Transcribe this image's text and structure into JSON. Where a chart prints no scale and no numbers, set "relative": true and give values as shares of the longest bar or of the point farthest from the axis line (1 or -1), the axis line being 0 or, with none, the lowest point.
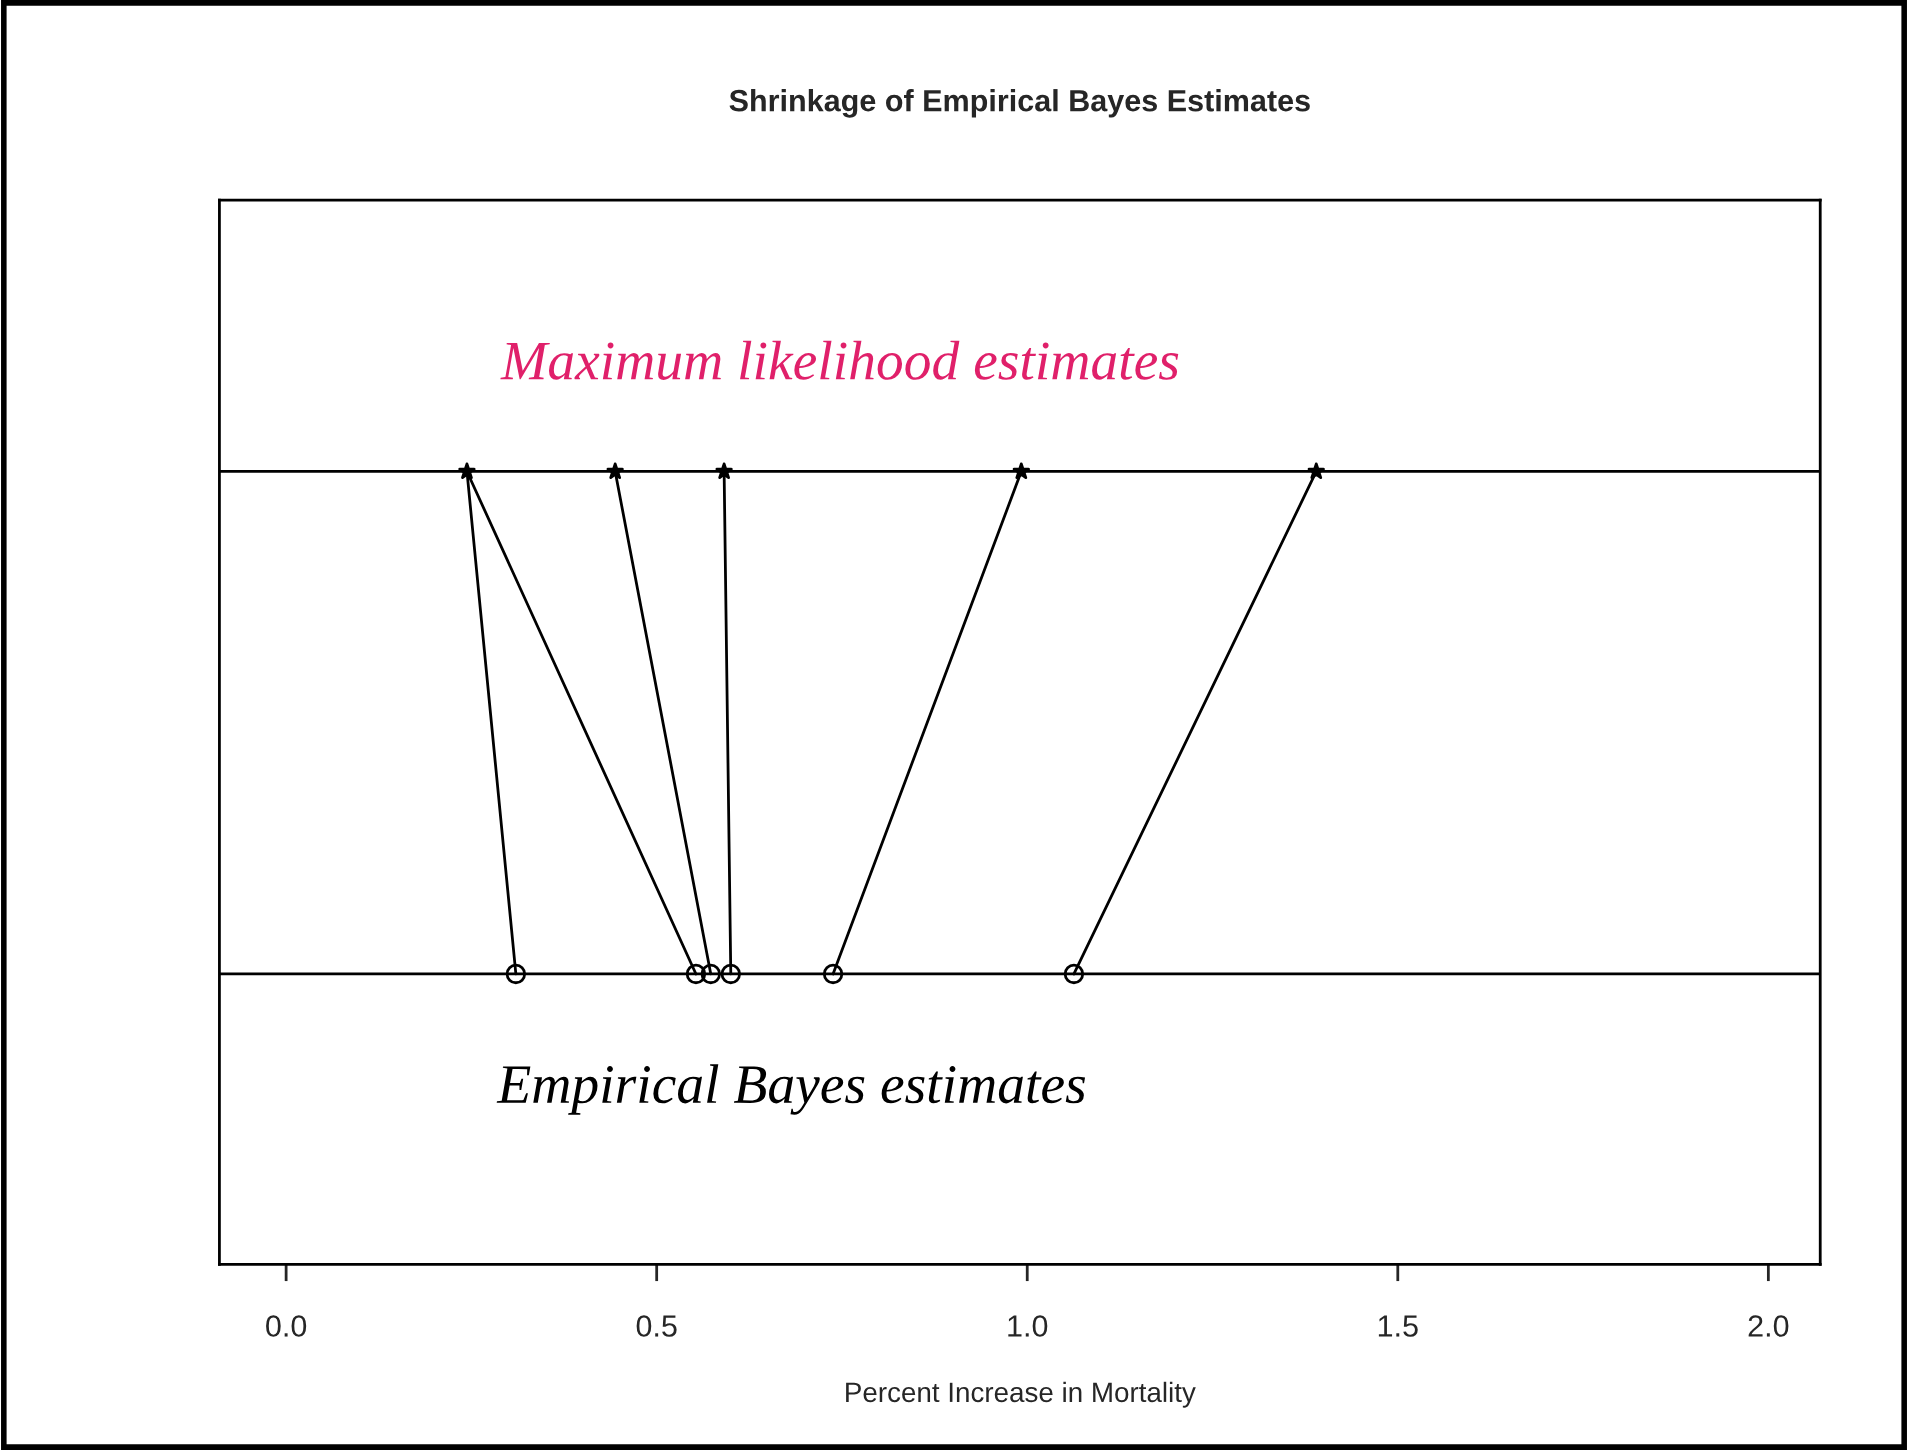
{
  "chart_data": {
    "type": "line",
    "title": "Shrinkage of Empirical Bayes Estimates",
    "xlabel": "Percent Increase in Mortality",
    "relative": true,
    "xlim": [
      -0.09,
      2.07
    ],
    "xticks": [
      {
        "value": 0,
        "label": "0.0"
      },
      {
        "value": 0.5,
        "label": "0.5"
      },
      {
        "value": 1,
        "label": "1.0"
      },
      {
        "value": 1.5,
        "label": "1.5"
      },
      {
        "value": 2,
        "label": "2.0"
      }
    ],
    "grid": false,
    "legend": false,
    "annotations": [
      "Maximum likelihood estimates",
      "Empirical Bayes estimates"
    ],
    "ref_lines": [
      {
        "axis": "y",
        "value": 1,
        "color": "#000000"
      },
      {
        "axis": "y",
        "value": 0,
        "color": "#000000"
      }
    ],
    "series": [
      {
        "type": "scatter",
        "marker": "star",
        "color": "#000000",
        "x": [
          0.244,
          0.444,
          0.591,
          0.992,
          1.39
        ],
        "values": [
          1,
          1,
          1,
          1,
          1
        ]
      },
      {
        "type": "scatter",
        "marker": "circle",
        "color": "#000000",
        "x": [
          0.31,
          0.553,
          0.573,
          0.6,
          0.738,
          1.063
        ],
        "values": [
          0,
          0,
          0,
          0,
          0,
          0
        ]
      },
      {
        "color": "#000000",
        "x": [
          0.244,
          0.31
        ],
        "values": [
          1,
          0
        ]
      },
      {
        "color": "#000000",
        "x": [
          0.244,
          0.553
        ],
        "values": [
          1,
          0
        ]
      },
      {
        "color": "#000000",
        "x": [
          0.444,
          0.573
        ],
        "values": [
          1,
          0
        ]
      },
      {
        "color": "#000000",
        "x": [
          0.591,
          0.6
        ],
        "values": [
          1,
          0
        ]
      },
      {
        "color": "#000000",
        "x": [
          0.992,
          0.738
        ],
        "values": [
          1,
          0
        ]
      },
      {
        "color": "#000000",
        "x": [
          1.39,
          1.063
        ],
        "values": [
          1,
          0
        ]
      }
    ]
  }
}
